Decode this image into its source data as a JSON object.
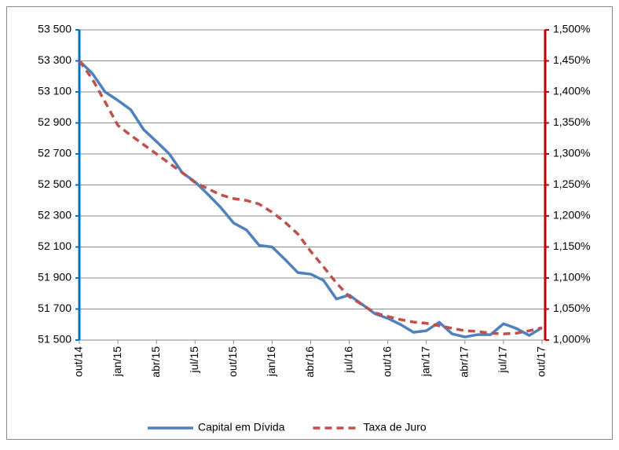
{
  "chart_data": {
    "type": "line",
    "categories": [
      "out/14",
      null,
      null,
      "jan/15",
      null,
      null,
      "abr/15",
      null,
      null,
      "jul/15",
      null,
      null,
      "out/15",
      null,
      null,
      "jan/16",
      null,
      null,
      "abr/16",
      null,
      null,
      "jul/16",
      null,
      null,
      "out/16",
      null,
      null,
      "jan/17",
      null,
      null,
      "abr/17",
      null,
      null,
      "jul/17",
      null,
      null,
      "out/17"
    ],
    "series": [
      {
        "name": "Capital em Dívida",
        "color": "#4f81bd",
        "values": [
          53300,
          53220,
          53100,
          53045,
          52985,
          52857,
          52780,
          52700,
          52580,
          52520,
          52440,
          52355,
          52255,
          52210,
          52110,
          52100,
          52020,
          51935,
          51925,
          51885,
          51765,
          51790,
          51730,
          51670,
          51640,
          51600,
          51550,
          51560,
          51615,
          51540,
          51520,
          51535,
          51535,
          51605,
          51575,
          51530,
          51580
        ]
      },
      {
        "name": "Taxa de Juro",
        "color": "#c0504d",
        "axis": "y2",
        "dashed": true,
        "values": [
          1.45,
          1.421,
          1.384,
          1.346,
          1.33,
          1.315,
          1.3,
          1.285,
          1.27,
          1.254,
          1.244,
          1.234,
          1.228,
          1.225,
          1.219,
          1.206,
          1.19,
          1.171,
          1.143,
          1.118,
          1.092,
          1.07,
          1.057,
          1.044,
          1.038,
          1.033,
          1.029,
          1.027,
          1.023,
          1.019,
          1.015,
          1.014,
          1.011,
          1.01,
          1.011,
          1.015,
          1.02
        ]
      }
    ],
    "ylim": [
      51500,
      53500
    ],
    "yticks": [
      {
        "value": 51500,
        "label": "51 500"
      },
      {
        "value": 51700,
        "label": "51 700"
      },
      {
        "value": 51900,
        "label": "51 900"
      },
      {
        "value": 52100,
        "label": "52 100"
      },
      {
        "value": 52300,
        "label": "52 300"
      },
      {
        "value": 52500,
        "label": "52 500"
      },
      {
        "value": 52700,
        "label": "52 700"
      },
      {
        "value": 52900,
        "label": "52 900"
      },
      {
        "value": 53100,
        "label": "53 100"
      },
      {
        "value": 53300,
        "label": "53 300"
      },
      {
        "value": 53500,
        "label": "53 500"
      }
    ],
    "y2lim": [
      1.0,
      1.5
    ],
    "y2ticks": [
      {
        "value": 1.0,
        "label": "1,000%"
      },
      {
        "value": 1.05,
        "label": "1,050%"
      },
      {
        "value": 1.1,
        "label": "1,100%"
      },
      {
        "value": 1.15,
        "label": "1,150%"
      },
      {
        "value": 1.2,
        "label": "1,200%"
      },
      {
        "value": 1.25,
        "label": "1,250%"
      },
      {
        "value": 1.3,
        "label": "1,300%"
      },
      {
        "value": 1.35,
        "label": "1,350%"
      },
      {
        "value": 1.4,
        "label": "1,400%"
      },
      {
        "value": 1.45,
        "label": "1,450%"
      },
      {
        "value": 1.5,
        "label": "1,500%"
      }
    ],
    "y_axis_color": "#0070c0",
    "y2_axis_color": "#c00000",
    "grid": true,
    "legend": "bottom"
  }
}
